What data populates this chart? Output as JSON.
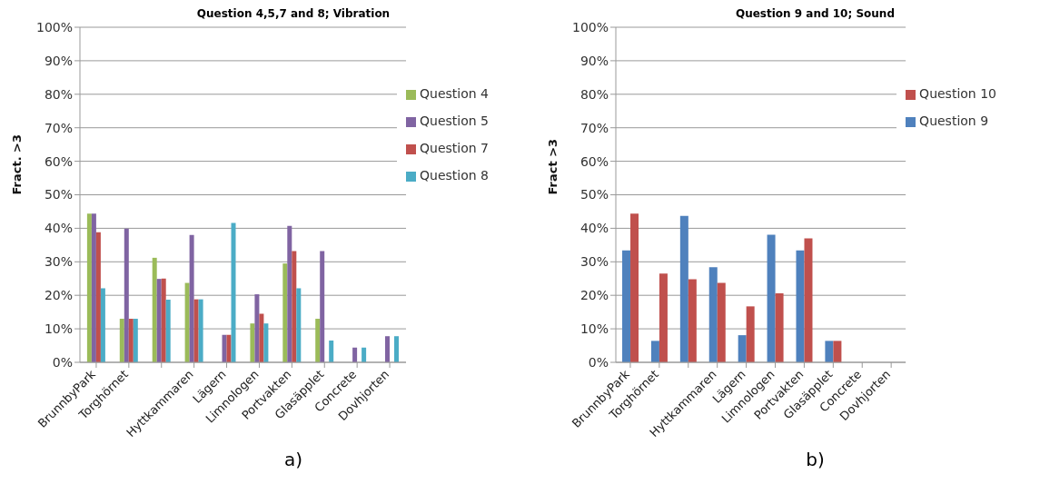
{
  "chart_data": [
    {
      "type": "bar",
      "title": "Question 4,5,7 and 8; Vibration",
      "ylabel": "Fract. >3",
      "categories": [
        "BrunnbyPark",
        "Torghörnet",
        null,
        "Hyttkammaren",
        "Lägern",
        "Limnologen",
        "Portvakten",
        "Glasäpplet",
        "Concrete",
        "Dovhjorten"
      ],
      "series": [
        {
          "name": "Question 4",
          "color": "#9bbb59",
          "values": [
            44.4,
            13.0,
            31.2,
            23.7,
            0,
            11.6,
            29.5,
            13.0,
            0,
            0
          ]
        },
        {
          "name": "Question 5",
          "color": "#8064a2",
          "values": [
            44.4,
            39.9,
            24.9,
            38.0,
            8.2,
            20.3,
            40.7,
            33.2,
            4.4,
            7.8
          ]
        },
        {
          "name": "Question 7",
          "color": "#c0504d",
          "values": [
            38.8,
            13.0,
            25.0,
            18.8,
            8.2,
            14.5,
            33.2,
            0,
            0,
            0
          ]
        },
        {
          "name": "Question 8",
          "color": "#4bacc6",
          "values": [
            22.1,
            13.0,
            18.7,
            18.8,
            41.6,
            11.6,
            22.1,
            6.5,
            4.4,
            7.8
          ]
        }
      ],
      "ylim": [
        0,
        100
      ],
      "yticks": [
        {
          "value": 0,
          "label": "0%"
        },
        {
          "value": 10,
          "label": "10%"
        },
        {
          "value": 20,
          "label": "20%"
        },
        {
          "value": 30,
          "label": "30%"
        },
        {
          "value": 40,
          "label": "40%"
        },
        {
          "value": 50,
          "label": "50%"
        },
        {
          "value": 60,
          "label": "60%"
        },
        {
          "value": 70,
          "label": "70%"
        },
        {
          "value": 80,
          "label": "80%"
        },
        {
          "value": 90,
          "label": "90%"
        },
        {
          "value": 100,
          "label": "100%"
        }
      ],
      "grid": "y",
      "legend": "top right",
      "annotations": [
        "a)"
      ]
    },
    {
      "type": "bar",
      "title": "Question 9 and 10; Sound",
      "ylabel": "Fract >3",
      "categories": [
        "BrunnbyPark",
        "Torghörnet",
        null,
        "Hyttkammaren",
        "Lägern",
        "Limnologen",
        "Portvakten",
        "Glasäpplet",
        "Concrete",
        "Dovhjorten"
      ],
      "series": [
        {
          "name": "Question 9",
          "color": "#4f81bd",
          "values": [
            33.4,
            6.4,
            43.7,
            28.4,
            8.1,
            38.1,
            33.4,
            6.4,
            0,
            0
          ]
        },
        {
          "name": "Question 10",
          "color": "#c0504d",
          "values": [
            44.4,
            26.5,
            24.8,
            23.7,
            16.7,
            20.6,
            37.0,
            6.4,
            0,
            0
          ]
        }
      ],
      "ylim": [
        0,
        100
      ],
      "yticks": [
        {
          "value": 0,
          "label": "0%"
        },
        {
          "value": 10,
          "label": "10%"
        },
        {
          "value": 20,
          "label": "20%"
        },
        {
          "value": 30,
          "label": "30%"
        },
        {
          "value": 40,
          "label": "40%"
        },
        {
          "value": 50,
          "label": "50%"
        },
        {
          "value": 60,
          "label": "60%"
        },
        {
          "value": 70,
          "label": "70%"
        },
        {
          "value": 80,
          "label": "80%"
        },
        {
          "value": 90,
          "label": "90%"
        },
        {
          "value": 100,
          "label": "100%"
        }
      ],
      "grid": "y",
      "legend": "top right",
      "annotations": [
        "b)"
      ]
    }
  ]
}
